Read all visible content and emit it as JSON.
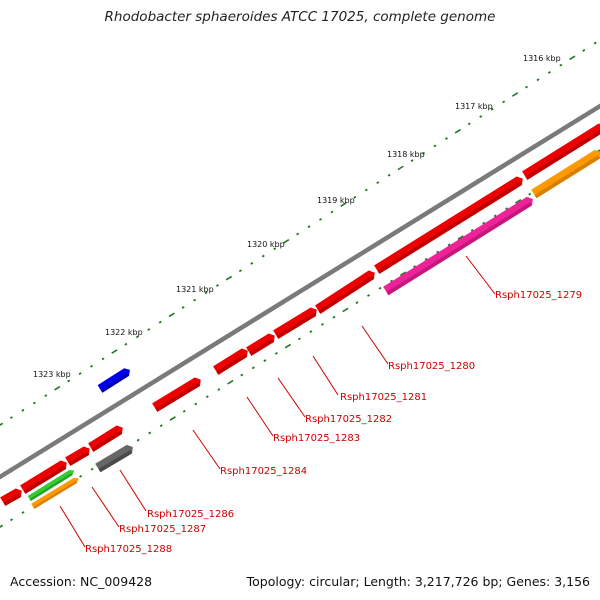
{
  "title": "Rhodobacter sphaeroides ATCC 17025, complete genome",
  "footer": {
    "accession": "Accession: NC_009428",
    "topology": "Topology: circular; Length: 3,217,726 bp; Genes: 3,156"
  },
  "colors": {
    "backbone": "#7a7a7a",
    "gene_red": "#ee0000",
    "gene_blue": "#0000ee",
    "gene_gray": "#666666",
    "gene_pink": "#ee2299",
    "gene_orange": "#ff9900",
    "gene_green": "#33cc33",
    "tick_green": "#227722",
    "label_red": "#cc0000"
  },
  "kbp_labels": [
    "1316 kbp",
    "1317 kbp",
    "1318 kbp",
    "1319 kbp",
    "1320 kbp",
    "1321 kbp",
    "1322 kbp",
    "1323 kbp"
  ],
  "gene_labels": [
    "Rsph17025_1279",
    "Rsph17025_1280",
    "Rsph17025_1281",
    "Rsph17025_1282",
    "Rsph17025_1283",
    "Rsph17025_1284",
    "Rsph17025_1286",
    "Rsph17025_1287",
    "Rsph17025_1288"
  ]
}
